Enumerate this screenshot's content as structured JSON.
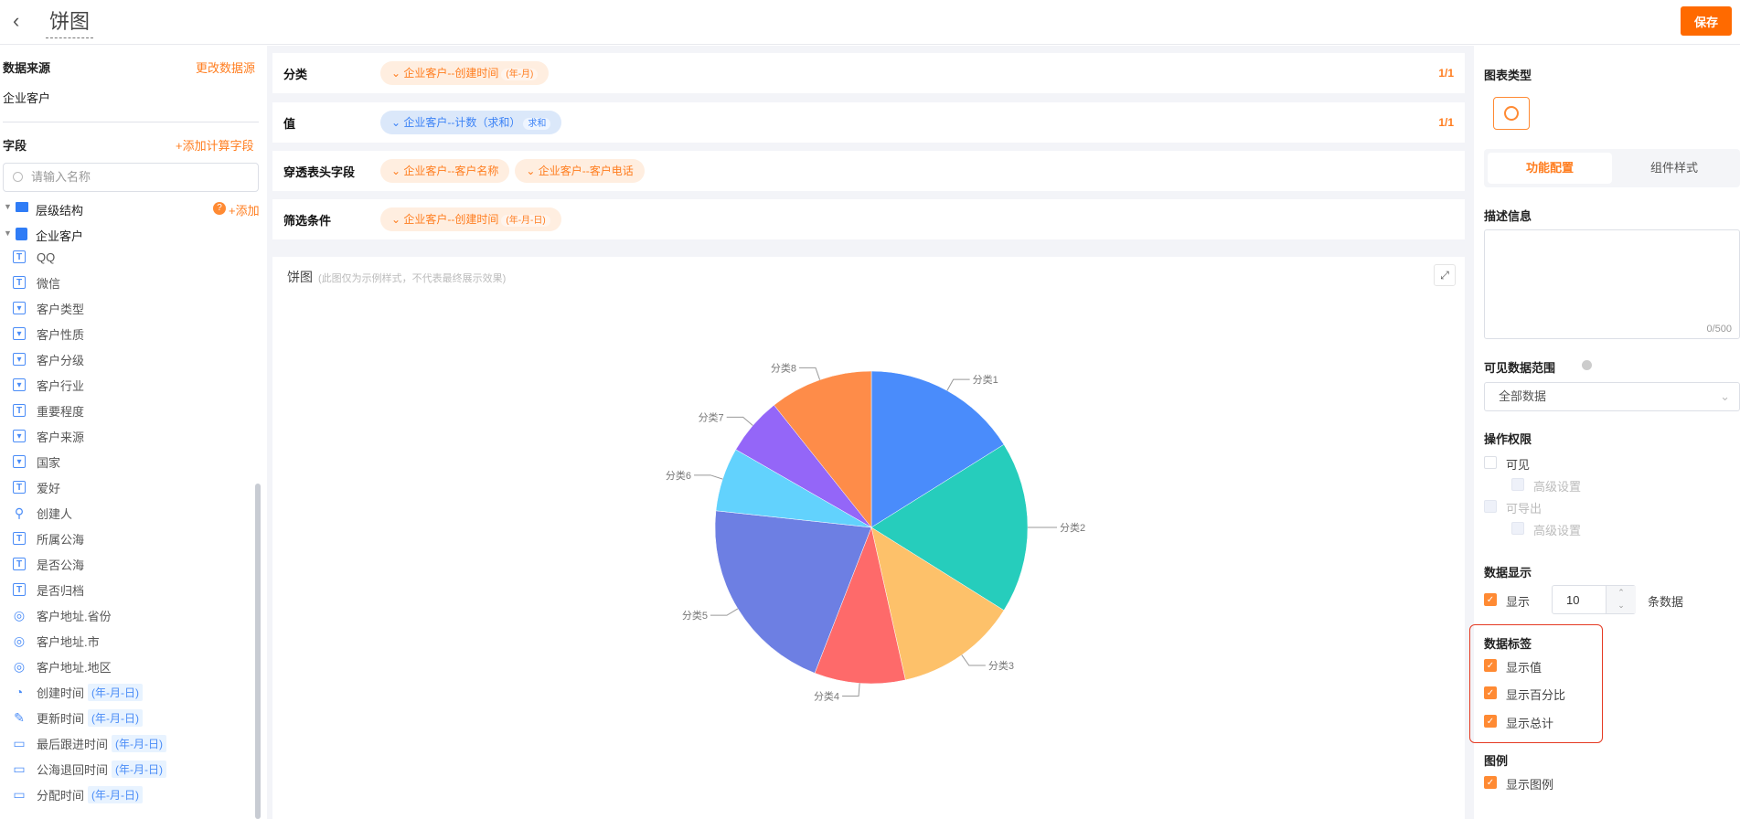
{
  "header": {
    "title": "饼图",
    "save_label": "保存"
  },
  "left": {
    "source_title": "数据来源",
    "change_source": "更改数据源",
    "source_name": "企业客户",
    "fields_title": "字段",
    "add_calc": "+添加计算字段",
    "search_placeholder": "请输入名称",
    "hierarchy": "层级结构",
    "hierarchy_add": "+添加",
    "entity": "企业客户",
    "fields": [
      {
        "label": "QQ",
        "icon": "text-icon"
      },
      {
        "label": "微信",
        "icon": "text-icon"
      },
      {
        "label": "客户类型",
        "icon": "select-icon"
      },
      {
        "label": "客户性质",
        "icon": "select-icon"
      },
      {
        "label": "客户分级",
        "icon": "select-icon"
      },
      {
        "label": "客户行业",
        "icon": "select-icon"
      },
      {
        "label": "重要程度",
        "icon": "text-icon"
      },
      {
        "label": "客户来源",
        "icon": "select-icon"
      },
      {
        "label": "国家",
        "icon": "select-icon"
      },
      {
        "label": "爱好",
        "icon": "text-icon"
      },
      {
        "label": "创建人",
        "icon": "user-icon"
      },
      {
        "label": "所属公海",
        "icon": "text-icon"
      },
      {
        "label": "是否公海",
        "icon": "text-icon"
      },
      {
        "label": "是否归档",
        "icon": "text-icon"
      },
      {
        "label": "客户地址.省份",
        "icon": "location-icon"
      },
      {
        "label": "客户地址.市",
        "icon": "location-icon"
      },
      {
        "label": "客户地址.地区",
        "icon": "location-icon"
      },
      {
        "label": "创建时间",
        "icon": "clock-icon",
        "tag": "(年-月-日)"
      },
      {
        "label": "更新时间",
        "icon": "edit-time-icon",
        "tag": "(年-月-日)"
      },
      {
        "label": "最后跟进时间",
        "icon": "calendar-icon",
        "tag": "(年-月-日)"
      },
      {
        "label": "公海退回时间",
        "icon": "calendar-icon",
        "tag": "(年-月-日)"
      },
      {
        "label": "分配时间",
        "icon": "calendar-icon",
        "tag": "(年-月-日)"
      }
    ]
  },
  "config": {
    "category": {
      "label": "分类",
      "chip": "企业客户--创建时间",
      "chip_sub": "(年-月)",
      "count": "1/1"
    },
    "value": {
      "label": "值",
      "chip": "企业客户--计数（求和）",
      "chip_sub": "求和",
      "count": "1/1"
    },
    "drill": {
      "label": "穿透表头字段",
      "chips": [
        "企业客户--客户名称",
        "企业客户--客户电话"
      ]
    },
    "filter": {
      "label": "筛选条件",
      "chip": "企业客户--创建时间",
      "chip_sub": "(年-月-日)"
    }
  },
  "chart": {
    "title": "饼图",
    "note": "(此图仅为示例样式，不代表最终展示效果)"
  },
  "chart_data": {
    "type": "pie",
    "categories": [
      "分类1",
      "分类2",
      "分类3",
      "分类4",
      "分类5",
      "分类6",
      "分类7",
      "分类8"
    ],
    "values": [
      16.1,
      17.8,
      12.6,
      9.4,
      20.8,
      6.6,
      6.0,
      10.7
    ],
    "colors": [
      "#4a8cfb",
      "#26cdbc",
      "#fdc16a",
      "#fe6a6a",
      "#6d7fe3",
      "#62d2fd",
      "#9466f8",
      "#fe8c49"
    ],
    "legend": "none"
  },
  "right": {
    "chart_type": "图表类型",
    "chart_type_icon": "pie-chart-icon",
    "tabs": [
      "功能配置",
      "组件样式"
    ],
    "desc_title": "描述信息",
    "desc_count": "0/500",
    "scope_title": "可见数据范围",
    "scope_value": "全部数据",
    "perm_title": "操作权限",
    "perm_visible": "可见",
    "perm_adv": "高级设置",
    "perm_export": "可导出",
    "display_title": "数据显示",
    "display_show": "显示",
    "display_num": "10",
    "display_unit": "条数据",
    "labels_title": "数据标签",
    "show_value": "显示值",
    "show_percent": "显示百分比",
    "show_total": "显示总计",
    "legend_title": "图例",
    "show_legend": "显示图例",
    "accent": "#ff7d1f"
  }
}
